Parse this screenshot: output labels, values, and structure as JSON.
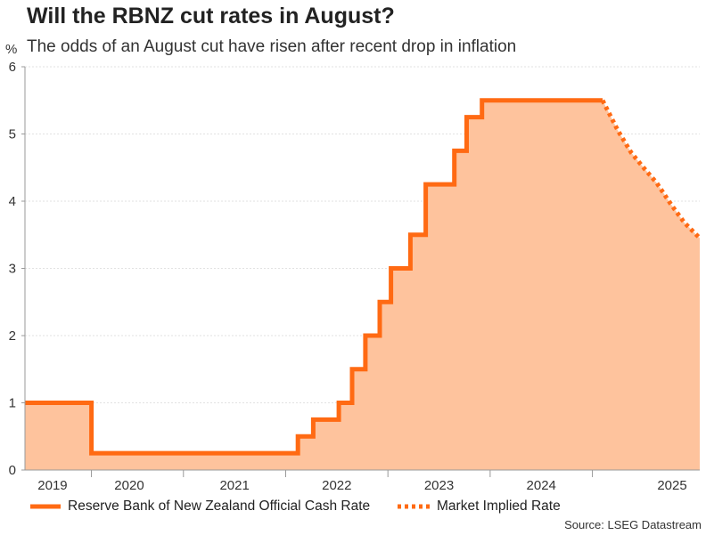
{
  "title": "Will the RBNZ cut rates in August?",
  "subtitle": "The odds of an August cut have risen after recent drop in inflation",
  "source": "Source: LSEG Datastream",
  "colors": {
    "line": "#ff6a13",
    "fill": "#fec39d",
    "grid": "#e2e2e2",
    "axis": "#999999"
  },
  "chart_data": {
    "type": "area",
    "title": "Will the RBNZ cut rates in August?",
    "ylabel": "%",
    "xlabel": "",
    "ylim": [
      0,
      6
    ],
    "yticks": [
      0,
      1,
      2,
      3,
      4,
      5,
      6
    ],
    "xlim": [
      2018.95,
      2025.55
    ],
    "xticks": [
      {
        "label": "2019",
        "pos": 2019.22
      },
      {
        "label": "2020",
        "pos": 2019.97
      },
      {
        "label": "2021",
        "pos": 2021.0
      },
      {
        "label": "2022",
        "pos": 2022.0
      },
      {
        "label": "2023",
        "pos": 2023.0
      },
      {
        "label": "2024",
        "pos": 2024.0
      },
      {
        "label": "2025",
        "pos": 2025.28
      }
    ],
    "xdividers": [
      2019.6,
      2020.5,
      2021.5,
      2022.5,
      2023.5,
      2024.5
    ],
    "series": [
      {
        "name": "Reserve Bank of New Zealand Official Cash Rate",
        "style": "solid-step",
        "points": [
          [
            2018.95,
            1.0
          ],
          [
            2019.6,
            1.0
          ],
          [
            2019.6,
            0.25
          ],
          [
            2021.62,
            0.25
          ],
          [
            2021.62,
            0.5
          ],
          [
            2021.77,
            0.5
          ],
          [
            2021.77,
            0.75
          ],
          [
            2022.02,
            0.75
          ],
          [
            2022.02,
            1.0
          ],
          [
            2022.15,
            1.0
          ],
          [
            2022.15,
            1.5
          ],
          [
            2022.28,
            1.5
          ],
          [
            2022.28,
            2.0
          ],
          [
            2022.42,
            2.0
          ],
          [
            2022.42,
            2.5
          ],
          [
            2022.53,
            2.5
          ],
          [
            2022.53,
            3.0
          ],
          [
            2022.72,
            3.0
          ],
          [
            2022.72,
            3.5
          ],
          [
            2022.87,
            3.5
          ],
          [
            2022.87,
            4.25
          ],
          [
            2023.15,
            4.25
          ],
          [
            2023.15,
            4.75
          ],
          [
            2023.27,
            4.75
          ],
          [
            2023.27,
            5.25
          ],
          [
            2023.42,
            5.25
          ],
          [
            2023.42,
            5.5
          ],
          [
            2024.6,
            5.5
          ]
        ]
      },
      {
        "name": "Market Implied Rate",
        "style": "dotted",
        "points": [
          [
            2024.6,
            5.5
          ],
          [
            2024.75,
            5.05
          ],
          [
            2024.88,
            4.72
          ],
          [
            2025.0,
            4.5
          ],
          [
            2025.13,
            4.27
          ],
          [
            2025.27,
            3.95
          ],
          [
            2025.4,
            3.68
          ],
          [
            2025.55,
            3.45
          ]
        ]
      }
    ]
  }
}
